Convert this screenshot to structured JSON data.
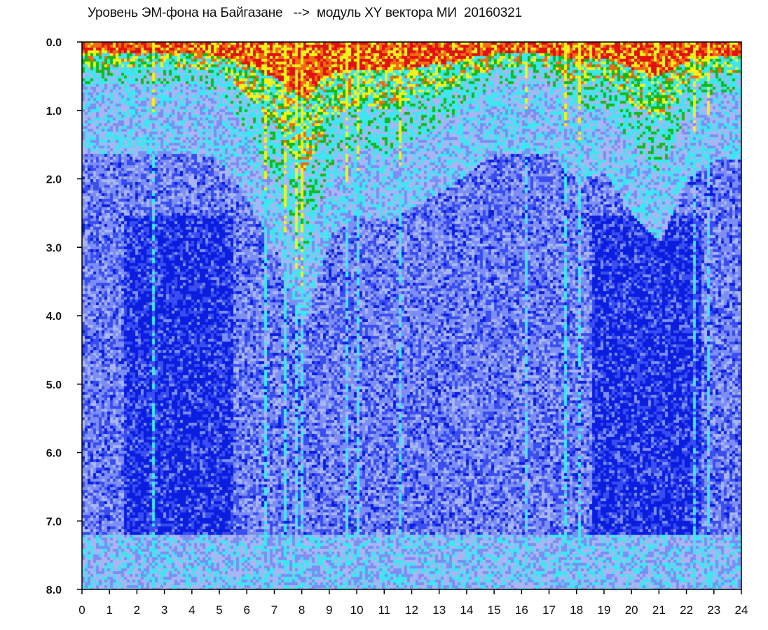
{
  "chart_data": {
    "type": "heatmap",
    "title": "Уровень ЭМ-фона на Байгазане   -->  модуль XY вектора МИ  20160321",
    "xlabel": "",
    "ylabel": "",
    "xlim": [
      0,
      24
    ],
    "ylim": [
      0,
      8
    ],
    "y_inverted": true,
    "x_ticks": [
      "0",
      "1",
      "2",
      "3",
      "4",
      "5",
      "6",
      "7",
      "8",
      "9",
      "10",
      "11",
      "12",
      "13",
      "14",
      "15",
      "16",
      "17",
      "18",
      "19",
      "20",
      "21",
      "22",
      "23",
      "24"
    ],
    "y_ticks": [
      "0.0",
      "1.0",
      "2.0",
      "3.0",
      "4.0",
      "5.0",
      "6.0",
      "7.0",
      "8.0"
    ],
    "colormap": [
      "#0b1ee0",
      "#3a4df0",
      "#7c8ef5",
      "#a8b6f3",
      "#3ee6f2",
      "#18b818",
      "#f2f21a",
      "#f26a12",
      "#e01212"
    ],
    "intensity_profile": {
      "hours": [
        0,
        1,
        2,
        3,
        4,
        5,
        6,
        7,
        7.5,
        8,
        9,
        10,
        11,
        12,
        13,
        14,
        15,
        16,
        17,
        18,
        19,
        20,
        21,
        22,
        23,
        24
      ],
      "activity_top_depth": [
        0.6,
        0.6,
        0.6,
        0.6,
        0.6,
        0.7,
        1.3,
        2.0,
        2.6,
        3.2,
        1.8,
        1.5,
        1.6,
        1.4,
        1.2,
        0.9,
        0.6,
        0.6,
        0.6,
        1.0,
        0.9,
        1.5,
        1.9,
        1.0,
        0.7,
        0.7
      ],
      "dense_low_band_hours": [
        [
          1.5,
          5.5
        ],
        [
          18.5,
          22.5
        ]
      ]
    },
    "vertical_streaks_hours": [
      2.6,
      6.6,
      7.3,
      7.8,
      8.0,
      9.6,
      10.0,
      11.5,
      16.1,
      17.5,
      18.1,
      22.2,
      22.8
    ]
  }
}
